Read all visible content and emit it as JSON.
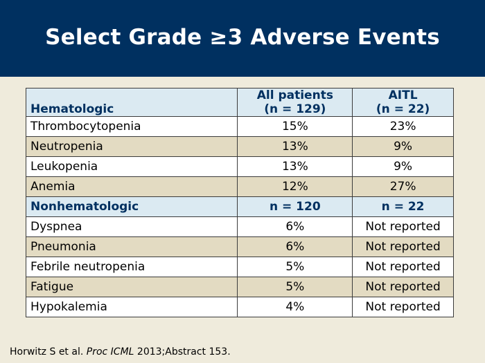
{
  "slide": {
    "title": "Select Grade ≥3 Adverse Events"
  },
  "table": {
    "header": {
      "col1": "Hematologic",
      "col2_line1": "All patients",
      "col2_line2": "(n = 129)",
      "col3_line1": "AITL",
      "col3_line2": "(n = 22)"
    },
    "hematologic_rows": [
      {
        "event": "Thrombocytopenia",
        "all": "15%",
        "aitl": "23%"
      },
      {
        "event": "Neutropenia",
        "all": "13%",
        "aitl": "9%"
      },
      {
        "event": "Leukopenia",
        "all": "13%",
        "aitl": "9%"
      },
      {
        "event": "Anemia",
        "all": "12%",
        "aitl": "27%"
      }
    ],
    "nonhem_header": {
      "col1": "Nonhematologic",
      "col2": "n = 120",
      "col3": "n = 22"
    },
    "nonhematologic_rows": [
      {
        "event": "Dyspnea",
        "all": "6%",
        "aitl": "Not reported"
      },
      {
        "event": "Pneumonia",
        "all": "6%",
        "aitl": "Not reported"
      },
      {
        "event": "Febrile neutropenia",
        "all": "5%",
        "aitl": "Not reported"
      },
      {
        "event": "Fatigue",
        "all": "5%",
        "aitl": "Not reported"
      },
      {
        "event": "Hypokalemia",
        "all": "4%",
        "aitl": "Not reported"
      }
    ]
  },
  "citation": {
    "authors": "Horwitz S et al.",
    "journal": "Proc ICML",
    "rest": "2013;Abstract 153."
  },
  "colors": {
    "header_band": "#003060",
    "background": "#efebdc",
    "header_cell": "#dbeaf2",
    "row_tan": "#e3dbc2",
    "row_white": "#ffffff"
  }
}
